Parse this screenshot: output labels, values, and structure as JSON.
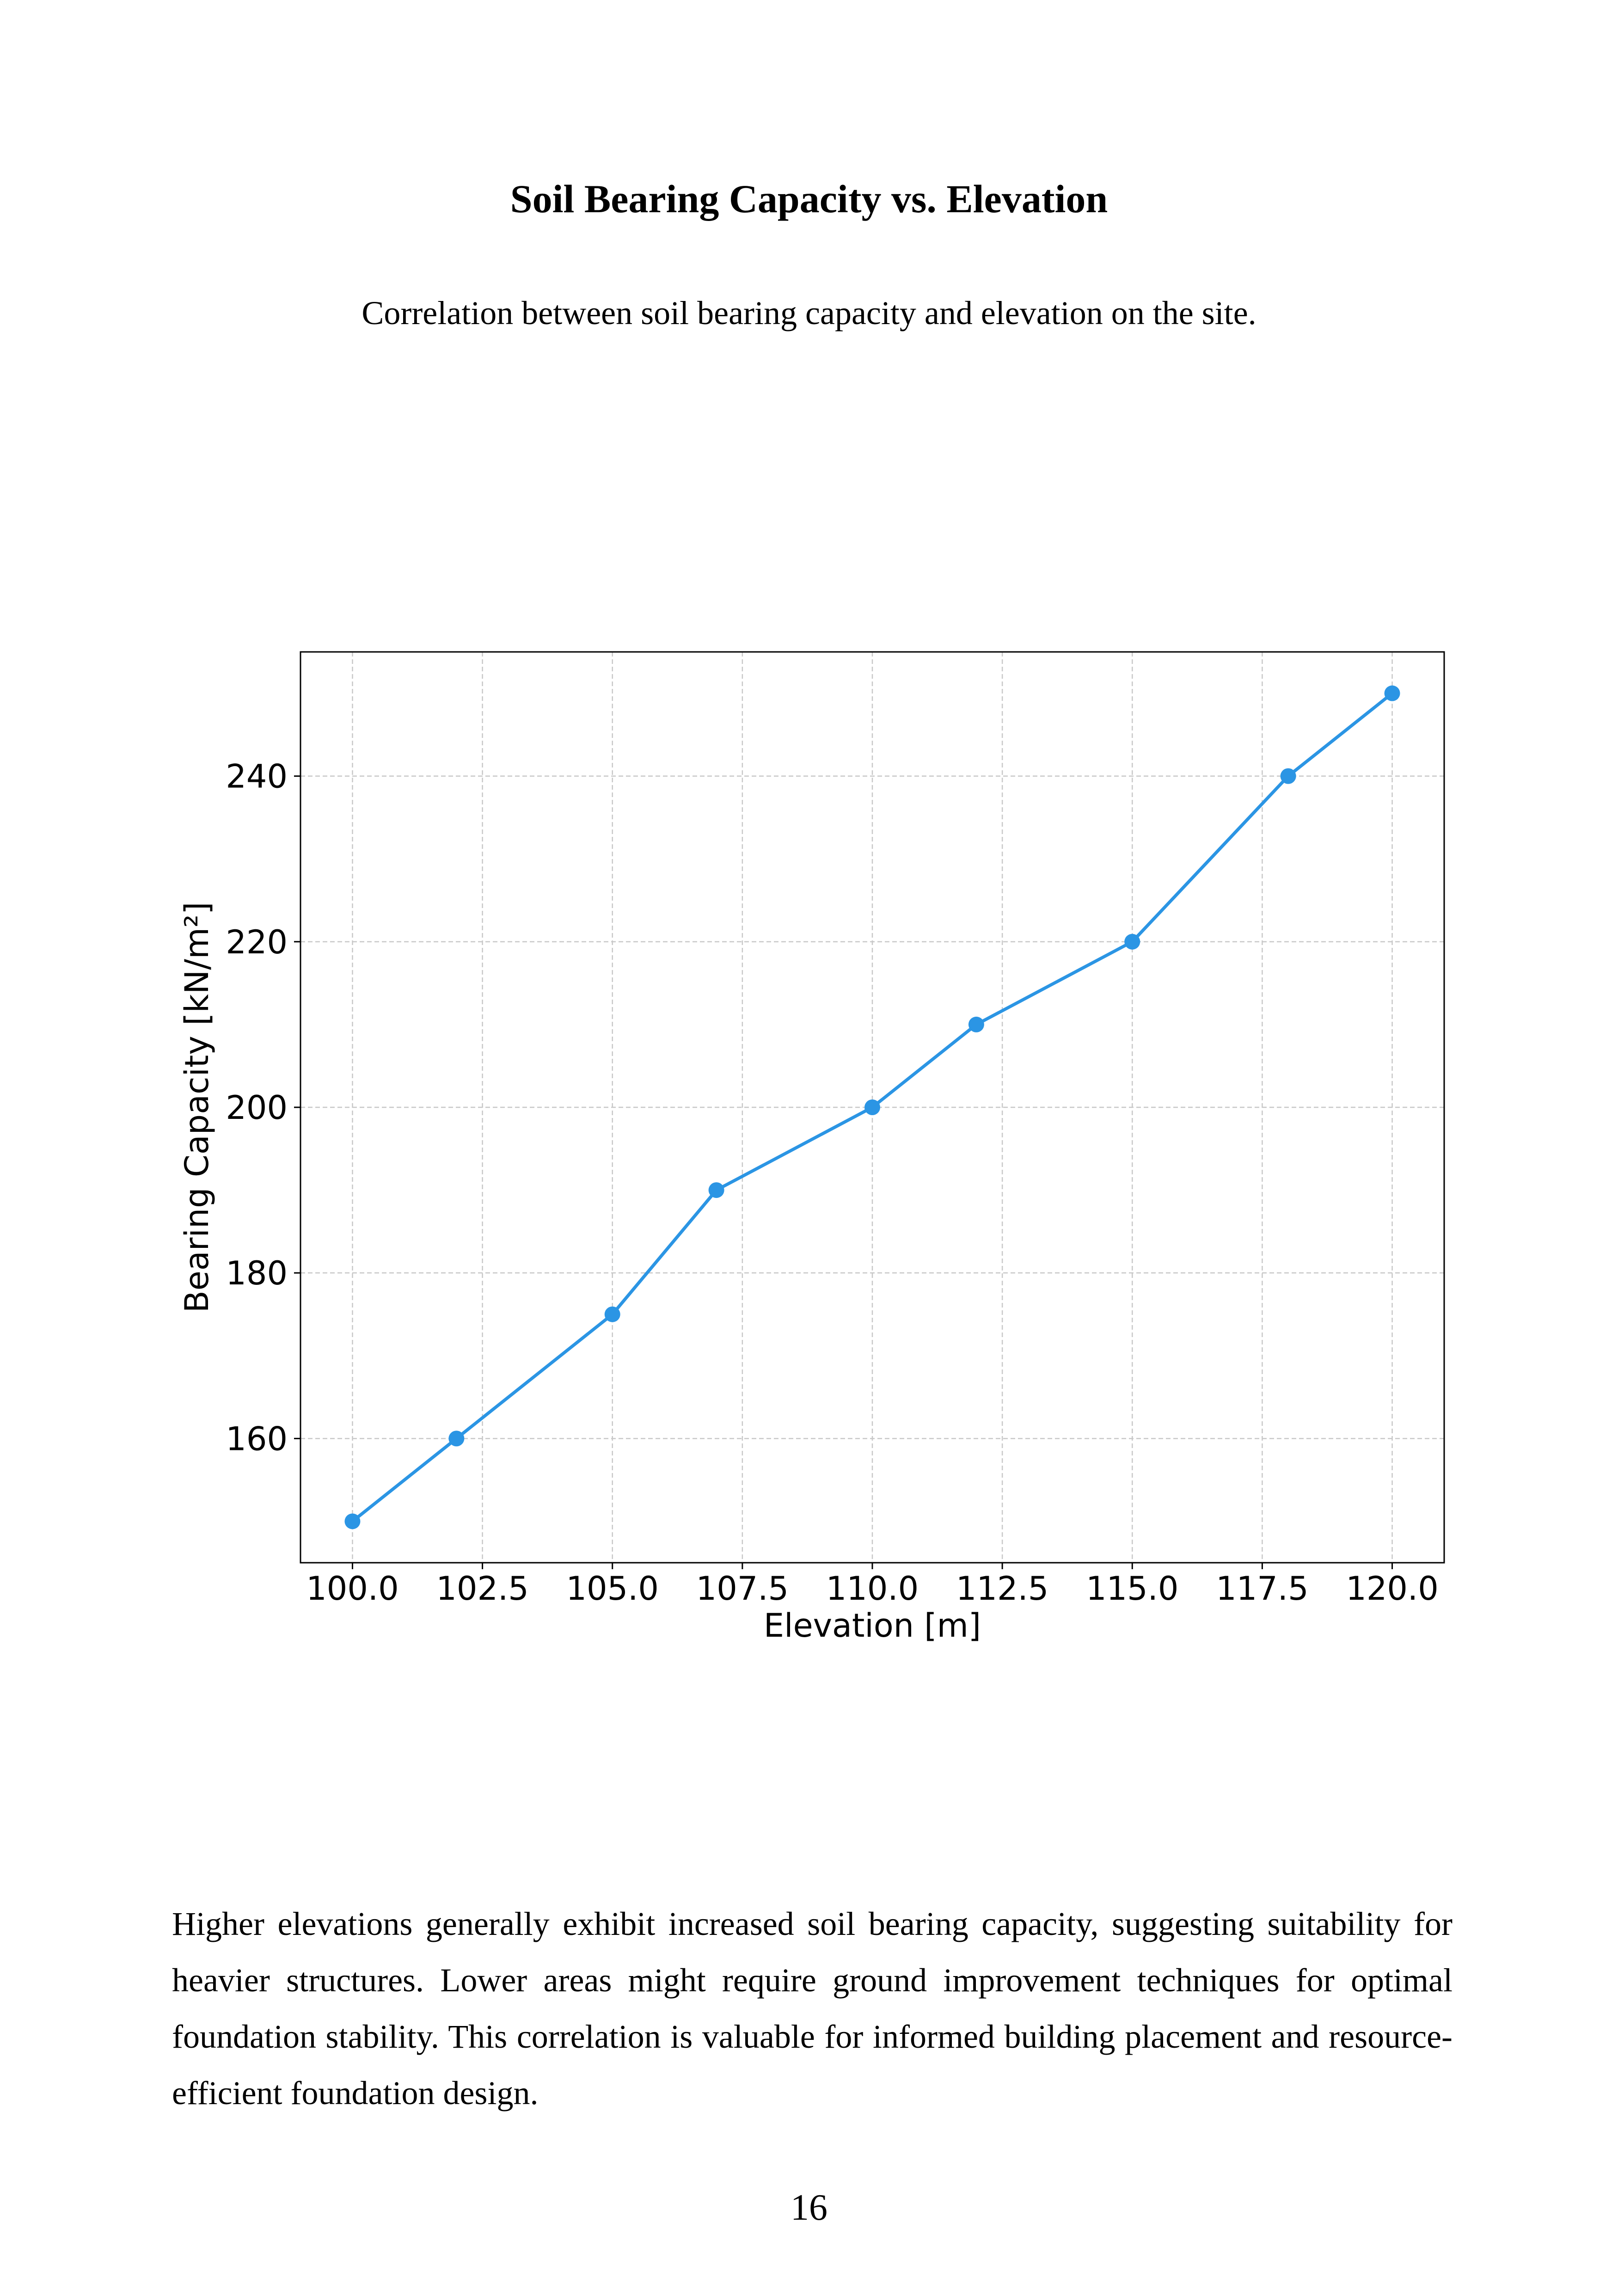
{
  "page": {
    "title": "Soil Bearing Capacity vs. Elevation",
    "subtitle": "Correlation between soil bearing capacity and elevation on the site.",
    "paragraph": "Higher elevations generally exhibit increased soil bearing capacity, suggesting suitability for heavier structures. Lower areas might require ground improvement techniques for optimal foundation stability. This correlation is valuable for informed building placement and resource-efficient foundation design.",
    "page_number": "16"
  },
  "chart_data": {
    "type": "line",
    "xlabel": "Elevation [m]",
    "ylabel": "Bearing Capacity [kN/m²]",
    "x": [
      100,
      102,
      105,
      107,
      110,
      112,
      115,
      118,
      120
    ],
    "series": [
      {
        "values": [
          150,
          160,
          175,
          190,
          200,
          210,
          220,
          240,
          250
        ],
        "color": "#2b95e4",
        "marker": "circle"
      }
    ],
    "xlim": [
      99,
      121
    ],
    "ylim": [
      145,
      255
    ],
    "xticks": [
      "100.0",
      "102.5",
      "105.0",
      "107.5",
      "110.0",
      "112.5",
      "115.0",
      "117.5",
      "120.0"
    ],
    "yticks": [
      "160",
      "180",
      "200",
      "220",
      "240"
    ],
    "grid": true
  }
}
